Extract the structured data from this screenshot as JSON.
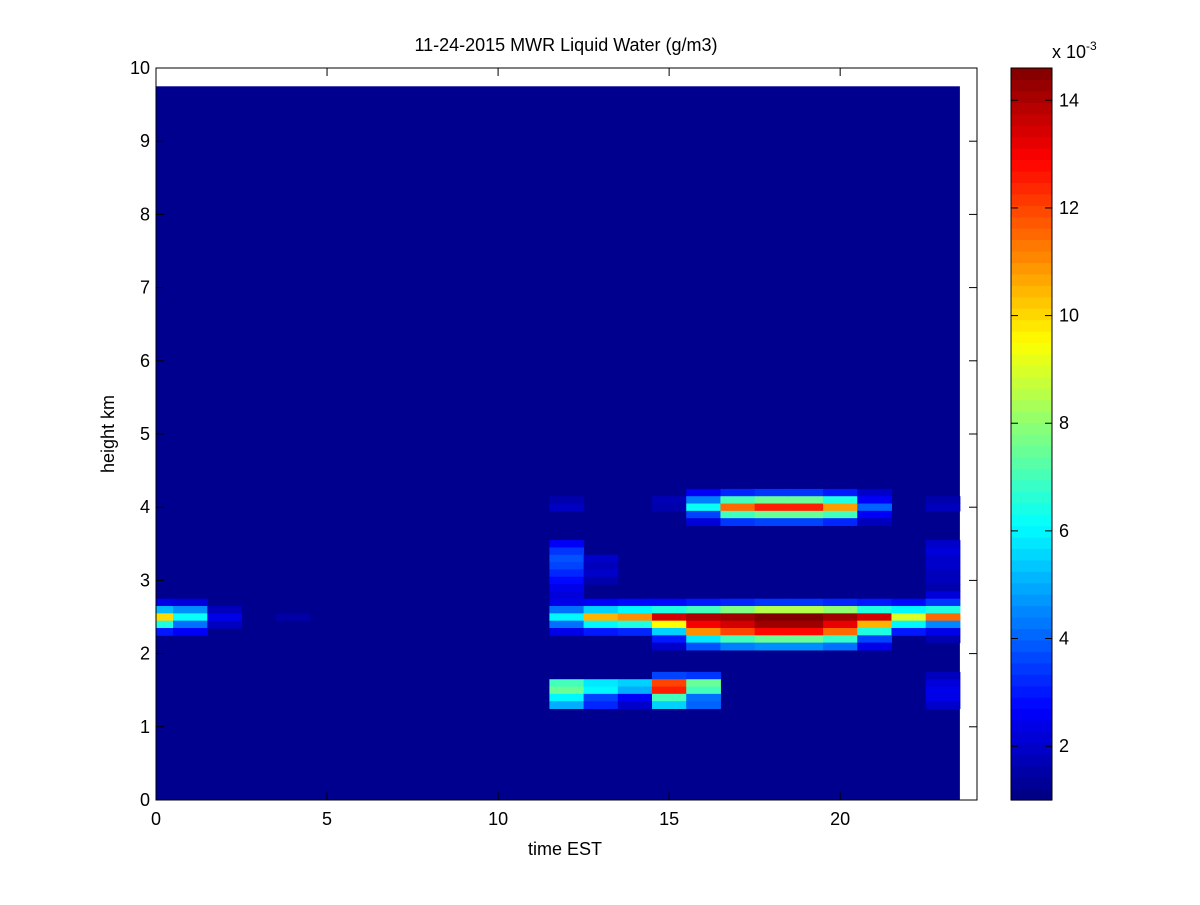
{
  "chart_data": {
    "type": "heatmap",
    "title": "11-24-2015 MWR Liquid Water (g/m3)",
    "xlabel": "time EST",
    "ylabel": "height km",
    "xlim": [
      0,
      24
    ],
    "ylim": [
      0,
      10
    ],
    "x_ticks": [
      0,
      5,
      10,
      15,
      20
    ],
    "y_ticks": [
      0,
      1,
      2,
      3,
      4,
      5,
      6,
      7,
      8,
      9,
      10
    ],
    "colorbar": {
      "label": "x 10",
      "exponent": "-3",
      "range": [
        1,
        14.6
      ],
      "ticks": [
        2,
        4,
        6,
        8,
        10,
        12,
        14
      ],
      "colormap": "jet"
    },
    "grid": "off",
    "data_extent": {
      "time": [
        0,
        23.5
      ],
      "height": [
        0,
        9.75
      ]
    },
    "background_value": 1.2,
    "cells_note": "values in units of 10^-3 g/m3; each cell = [time_start, time_end, height_start, height_end, value]",
    "cells": [
      [
        0,
        0.5,
        2.65,
        2.75,
        2.4
      ],
      [
        0,
        0.5,
        2.55,
        2.65,
        5.2
      ],
      [
        0,
        0.5,
        2.45,
        2.55,
        10.0
      ],
      [
        0,
        0.5,
        2.35,
        2.45,
        6.5
      ],
      [
        0,
        0.5,
        2.25,
        2.35,
        3.0
      ],
      [
        0.5,
        1.5,
        2.65,
        2.75,
        2.2
      ],
      [
        0.5,
        1.5,
        2.55,
        2.65,
        4.6
      ],
      [
        0.5,
        1.5,
        2.45,
        2.55,
        6.2
      ],
      [
        0.5,
        1.5,
        2.35,
        2.45,
        4.2
      ],
      [
        0.5,
        1.5,
        2.25,
        2.35,
        2.6
      ],
      [
        1.5,
        2.5,
        2.55,
        2.65,
        1.8
      ],
      [
        1.5,
        2.5,
        2.45,
        2.55,
        2.4
      ],
      [
        1.5,
        2.5,
        2.35,
        2.45,
        1.9
      ],
      [
        3.5,
        4.5,
        2.45,
        2.55,
        1.5
      ],
      [
        11.5,
        12.5,
        3.45,
        3.55,
        2.6
      ],
      [
        11.5,
        12.5,
        3.35,
        3.45,
        3.4
      ],
      [
        11.5,
        12.5,
        3.25,
        3.35,
        3.8
      ],
      [
        11.5,
        12.5,
        3.15,
        3.25,
        3.6
      ],
      [
        11.5,
        12.5,
        3.05,
        3.15,
        3.2
      ],
      [
        11.5,
        12.5,
        2.95,
        3.05,
        2.8
      ],
      [
        11.5,
        12.5,
        2.85,
        2.95,
        2.4
      ],
      [
        11.5,
        12.5,
        2.75,
        2.85,
        2.2
      ],
      [
        11.5,
        12.5,
        2.65,
        2.75,
        2.4
      ],
      [
        11.5,
        12.5,
        2.55,
        2.65,
        4.2
      ],
      [
        11.5,
        12.5,
        2.45,
        2.55,
        6.0
      ],
      [
        11.5,
        12.5,
        2.35,
        2.45,
        4.2
      ],
      [
        11.5,
        12.5,
        2.25,
        2.35,
        2.4
      ],
      [
        11.5,
        12.5,
        4.05,
        4.15,
        1.6
      ],
      [
        11.5,
        12.5,
        3.95,
        4.05,
        1.9
      ],
      [
        11.5,
        12.5,
        1.55,
        1.65,
        7.0
      ],
      [
        11.5,
        12.5,
        1.45,
        1.55,
        7.5
      ],
      [
        11.5,
        12.5,
        1.35,
        1.45,
        6.0
      ],
      [
        11.5,
        12.5,
        1.25,
        1.35,
        5.0
      ],
      [
        12.5,
        13.5,
        3.25,
        3.35,
        2.0
      ],
      [
        12.5,
        13.5,
        3.15,
        3.25,
        1.8
      ],
      [
        12.5,
        13.5,
        3.05,
        3.15,
        2.0
      ],
      [
        12.5,
        13.5,
        2.95,
        3.05,
        1.6
      ],
      [
        12.5,
        13.5,
        2.65,
        2.75,
        2.6
      ],
      [
        12.5,
        13.5,
        2.55,
        2.65,
        5.5
      ],
      [
        12.5,
        13.5,
        2.45,
        2.55,
        10.5
      ],
      [
        12.5,
        13.5,
        2.35,
        2.45,
        6.0
      ],
      [
        12.5,
        13.5,
        2.25,
        2.35,
        3.0
      ],
      [
        12.5,
        13.5,
        1.55,
        1.65,
        5.8
      ],
      [
        12.5,
        13.5,
        1.45,
        1.55,
        6.0
      ],
      [
        12.5,
        13.5,
        1.35,
        1.45,
        3.6
      ],
      [
        12.5,
        13.5,
        1.25,
        1.35,
        3.2
      ],
      [
        13.5,
        14.5,
        2.65,
        2.75,
        2.8
      ],
      [
        13.5,
        14.5,
        2.55,
        2.65,
        6.0
      ],
      [
        13.5,
        14.5,
        2.45,
        2.55,
        11.0
      ],
      [
        13.5,
        14.5,
        2.35,
        2.45,
        6.5
      ],
      [
        13.5,
        14.5,
        2.25,
        2.35,
        3.2
      ],
      [
        13.5,
        14.5,
        1.55,
        1.65,
        5.5
      ],
      [
        13.5,
        14.5,
        1.45,
        1.55,
        5.0
      ],
      [
        13.5,
        14.5,
        1.35,
        1.45,
        2.6
      ],
      [
        13.5,
        14.5,
        1.25,
        1.35,
        2.0
      ],
      [
        14.5,
        15.5,
        4.05,
        4.15,
        1.7
      ],
      [
        14.5,
        15.5,
        3.95,
        4.05,
        1.6
      ],
      [
        14.5,
        15.5,
        2.65,
        2.75,
        2.8
      ],
      [
        14.5,
        15.5,
        2.55,
        2.65,
        6.5
      ],
      [
        14.5,
        15.5,
        2.45,
        2.55,
        13.5
      ],
      [
        14.5,
        15.5,
        2.35,
        2.45,
        9.5
      ],
      [
        14.5,
        15.5,
        2.25,
        2.35,
        5.5
      ],
      [
        14.5,
        15.5,
        2.15,
        2.25,
        3.0
      ],
      [
        14.5,
        15.5,
        2.05,
        2.15,
        2.0
      ],
      [
        14.5,
        15.5,
        1.65,
        1.75,
        3.6
      ],
      [
        14.5,
        15.5,
        1.55,
        1.65,
        12.0
      ],
      [
        14.5,
        15.5,
        1.45,
        1.55,
        12.5
      ],
      [
        14.5,
        15.5,
        1.35,
        1.45,
        7.0
      ],
      [
        14.5,
        15.5,
        1.25,
        1.35,
        5.5
      ],
      [
        15.5,
        16.5,
        4.15,
        4.25,
        2.6
      ],
      [
        15.5,
        16.5,
        4.05,
        4.15,
        4.4
      ],
      [
        15.5,
        16.5,
        3.95,
        4.05,
        6.2
      ],
      [
        15.5,
        16.5,
        3.85,
        3.95,
        3.6
      ],
      [
        15.5,
        16.5,
        3.75,
        3.85,
        2.2
      ],
      [
        15.5,
        16.5,
        2.65,
        2.75,
        3.0
      ],
      [
        15.5,
        16.5,
        2.55,
        2.65,
        7.0
      ],
      [
        15.5,
        16.5,
        2.45,
        2.55,
        14.0
      ],
      [
        15.5,
        16.5,
        2.35,
        2.45,
        13.0
      ],
      [
        15.5,
        16.5,
        2.25,
        2.35,
        11.0
      ],
      [
        15.5,
        16.5,
        2.15,
        2.25,
        5.8
      ],
      [
        15.5,
        16.5,
        2.05,
        2.15,
        3.8
      ],
      [
        15.5,
        16.5,
        1.65,
        1.75,
        3.4
      ],
      [
        15.5,
        16.5,
        1.55,
        1.65,
        7.5
      ],
      [
        15.5,
        16.5,
        1.45,
        1.55,
        7.0
      ],
      [
        15.5,
        16.5,
        1.35,
        1.45,
        4.2
      ],
      [
        15.5,
        16.5,
        1.25,
        1.35,
        4.0
      ],
      [
        16.5,
        17.5,
        4.15,
        4.25,
        3.2
      ],
      [
        16.5,
        17.5,
        4.05,
        4.15,
        7.0
      ],
      [
        16.5,
        17.5,
        3.95,
        4.05,
        11.5
      ],
      [
        16.5,
        17.5,
        3.85,
        3.95,
        7.0
      ],
      [
        16.5,
        17.5,
        3.75,
        3.85,
        3.4
      ],
      [
        16.5,
        17.5,
        2.65,
        2.75,
        3.2
      ],
      [
        16.5,
        17.5,
        2.55,
        2.65,
        7.8
      ],
      [
        16.5,
        17.5,
        2.45,
        2.55,
        14.2
      ],
      [
        16.5,
        17.5,
        2.35,
        2.45,
        13.5
      ],
      [
        16.5,
        17.5,
        2.25,
        2.35,
        12.0
      ],
      [
        16.5,
        17.5,
        2.15,
        2.25,
        7.0
      ],
      [
        16.5,
        17.5,
        2.05,
        2.15,
        4.4
      ],
      [
        17.5,
        18.5,
        4.15,
        4.25,
        3.4
      ],
      [
        17.5,
        18.5,
        4.05,
        4.15,
        7.5
      ],
      [
        17.5,
        18.5,
        3.95,
        4.05,
        12.5
      ],
      [
        17.5,
        18.5,
        3.85,
        3.95,
        7.5
      ],
      [
        17.5,
        18.5,
        3.75,
        3.85,
        3.6
      ],
      [
        17.5,
        18.5,
        2.65,
        2.75,
        3.4
      ],
      [
        17.5,
        18.5,
        2.55,
        2.65,
        8.5
      ],
      [
        17.5,
        18.5,
        2.45,
        2.55,
        14.6
      ],
      [
        17.5,
        18.5,
        2.35,
        2.45,
        14.2
      ],
      [
        17.5,
        18.5,
        2.25,
        2.35,
        12.8
      ],
      [
        17.5,
        18.5,
        2.15,
        2.25,
        7.5
      ],
      [
        17.5,
        18.5,
        2.05,
        2.15,
        4.6
      ],
      [
        18.5,
        19.5,
        4.15,
        4.25,
        3.4
      ],
      [
        18.5,
        19.5,
        4.05,
        4.15,
        7.5
      ],
      [
        18.5,
        19.5,
        3.95,
        4.05,
        12.5
      ],
      [
        18.5,
        19.5,
        3.85,
        3.95,
        7.5
      ],
      [
        18.5,
        19.5,
        3.75,
        3.85,
        3.6
      ],
      [
        18.5,
        19.5,
        2.65,
        2.75,
        3.4
      ],
      [
        18.5,
        19.5,
        2.55,
        2.65,
        8.5
      ],
      [
        18.5,
        19.5,
        2.45,
        2.55,
        14.6
      ],
      [
        18.5,
        19.5,
        2.35,
        2.45,
        14.2
      ],
      [
        18.5,
        19.5,
        2.25,
        2.35,
        12.8
      ],
      [
        18.5,
        19.5,
        2.15,
        2.25,
        7.5
      ],
      [
        18.5,
        19.5,
        2.05,
        2.15,
        4.6
      ],
      [
        19.5,
        20.5,
        4.15,
        4.25,
        3.0
      ],
      [
        19.5,
        20.5,
        4.05,
        4.15,
        6.5
      ],
      [
        19.5,
        20.5,
        3.95,
        4.05,
        10.8
      ],
      [
        19.5,
        20.5,
        3.85,
        3.95,
        7.0
      ],
      [
        19.5,
        20.5,
        3.75,
        3.85,
        3.2
      ],
      [
        19.5,
        20.5,
        2.65,
        2.75,
        3.2
      ],
      [
        19.5,
        20.5,
        2.55,
        2.65,
        8.0
      ],
      [
        19.5,
        20.5,
        2.45,
        2.55,
        14.2
      ],
      [
        19.5,
        20.5,
        2.35,
        2.45,
        13.2
      ],
      [
        19.5,
        20.5,
        2.25,
        2.35,
        11.5
      ],
      [
        19.5,
        20.5,
        2.15,
        2.25,
        6.8
      ],
      [
        19.5,
        20.5,
        2.05,
        2.15,
        4.2
      ],
      [
        20.5,
        21.5,
        4.15,
        4.25,
        2.0
      ],
      [
        20.5,
        21.5,
        4.05,
        4.15,
        2.6
      ],
      [
        20.5,
        21.5,
        3.95,
        4.05,
        4.0
      ],
      [
        20.5,
        21.5,
        3.85,
        3.95,
        2.6
      ],
      [
        20.5,
        21.5,
        3.75,
        3.85,
        1.8
      ],
      [
        20.5,
        21.5,
        2.65,
        2.75,
        3.0
      ],
      [
        20.5,
        21.5,
        2.55,
        2.65,
        6.5
      ],
      [
        20.5,
        21.5,
        2.45,
        2.55,
        13.5
      ],
      [
        20.5,
        21.5,
        2.35,
        2.45,
        10.5
      ],
      [
        20.5,
        21.5,
        2.25,
        2.35,
        6.5
      ],
      [
        20.5,
        21.5,
        2.15,
        2.25,
        3.6
      ],
      [
        20.5,
        21.5,
        2.05,
        2.15,
        2.4
      ],
      [
        21.5,
        22.5,
        2.65,
        2.75,
        2.8
      ],
      [
        21.5,
        22.5,
        2.55,
        2.65,
        6.0
      ],
      [
        21.5,
        22.5,
        2.45,
        2.55,
        9.0
      ],
      [
        21.5,
        22.5,
        2.35,
        2.45,
        6.0
      ],
      [
        21.5,
        22.5,
        2.25,
        2.35,
        3.0
      ],
      [
        22.5,
        23.5,
        4.05,
        4.15,
        1.6
      ],
      [
        22.5,
        23.5,
        3.95,
        4.05,
        1.8
      ],
      [
        22.5,
        23.5,
        3.45,
        3.55,
        2.0
      ],
      [
        22.5,
        23.5,
        3.35,
        3.45,
        2.2
      ],
      [
        22.5,
        23.5,
        3.25,
        3.35,
        2.0
      ],
      [
        22.5,
        23.5,
        3.15,
        3.25,
        2.0
      ],
      [
        22.5,
        23.5,
        3.05,
        3.15,
        1.8
      ],
      [
        22.5,
        23.5,
        2.95,
        3.05,
        1.8
      ],
      [
        22.5,
        23.5,
        2.85,
        2.95,
        1.6
      ],
      [
        22.5,
        23.5,
        2.75,
        2.85,
        2.2
      ],
      [
        22.5,
        23.5,
        2.65,
        2.75,
        3.4
      ],
      [
        22.5,
        23.5,
        2.55,
        2.65,
        6.5
      ],
      [
        22.5,
        23.5,
        2.45,
        2.55,
        11.5
      ],
      [
        22.5,
        23.5,
        2.35,
        2.45,
        4.5
      ],
      [
        22.5,
        23.5,
        2.25,
        2.35,
        2.4
      ],
      [
        22.5,
        23.5,
        2.15,
        2.25,
        1.6
      ],
      [
        22.5,
        23.5,
        1.65,
        1.75,
        1.8
      ],
      [
        22.5,
        23.5,
        1.55,
        1.65,
        2.2
      ],
      [
        22.5,
        23.5,
        1.45,
        1.55,
        2.4
      ],
      [
        22.5,
        23.5,
        1.35,
        1.45,
        2.4
      ],
      [
        22.5,
        23.5,
        1.25,
        1.35,
        2.0
      ]
    ]
  }
}
